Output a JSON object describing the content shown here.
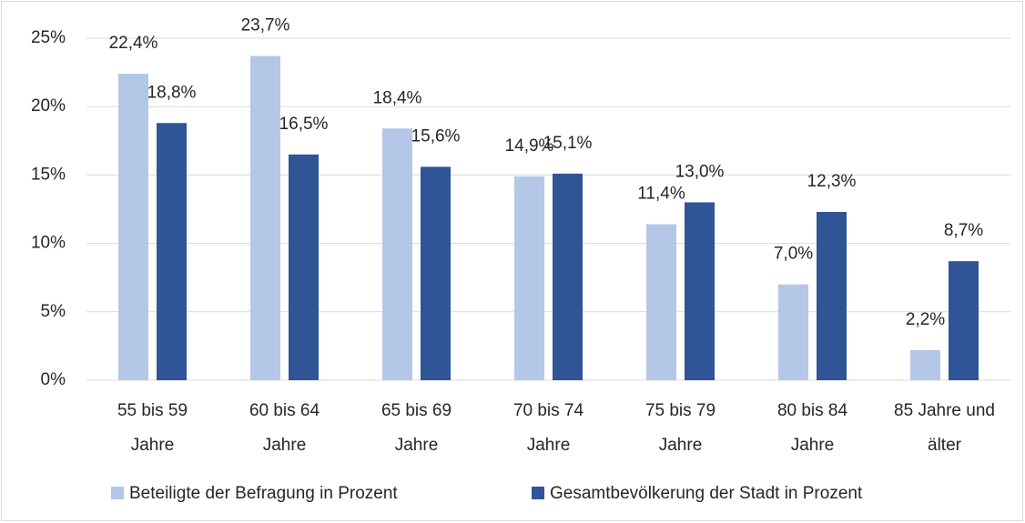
{
  "chart_data": {
    "type": "bar",
    "categories": [
      "55 bis 59\nJahre",
      "60 bis 64\nJahre",
      "65 bis 69\nJahre",
      "70 bis 74\nJahre",
      "75 bis 79\nJahre",
      "80 bis 84\nJahre",
      "85 Jahre und\nälter"
    ],
    "series": [
      {
        "name": "Beteiligte der Befragung in Prozent",
        "color": "#b4c7e7",
        "values": [
          22.4,
          23.7,
          18.4,
          14.9,
          11.4,
          7.0,
          2.2
        ],
        "value_labels": [
          "22,4%",
          "23,7%",
          "18,4%",
          "14,9%",
          "11,4%",
          "7,0%",
          "2,2%"
        ]
      },
      {
        "name": "Gesamtbevölkerung der Stadt in Prozent",
        "color": "#2f5597",
        "values": [
          18.8,
          16.5,
          15.6,
          15.1,
          13.0,
          12.3,
          8.7
        ],
        "value_labels": [
          "18,8%",
          "16,5%",
          "15,6%",
          "15,1%",
          "13,0%",
          "12,3%",
          "8,7%"
        ]
      }
    ],
    "ylim": [
      0,
      25
    ],
    "yticks": [
      {
        "value": 0,
        "label": "0%"
      },
      {
        "value": 5,
        "label": "5%"
      },
      {
        "value": 10,
        "label": "10%"
      },
      {
        "value": 15,
        "label": "15%"
      },
      {
        "value": 20,
        "label": "20%"
      },
      {
        "value": 25,
        "label": "25%"
      }
    ],
    "grid": true,
    "legend": "bottom"
  }
}
